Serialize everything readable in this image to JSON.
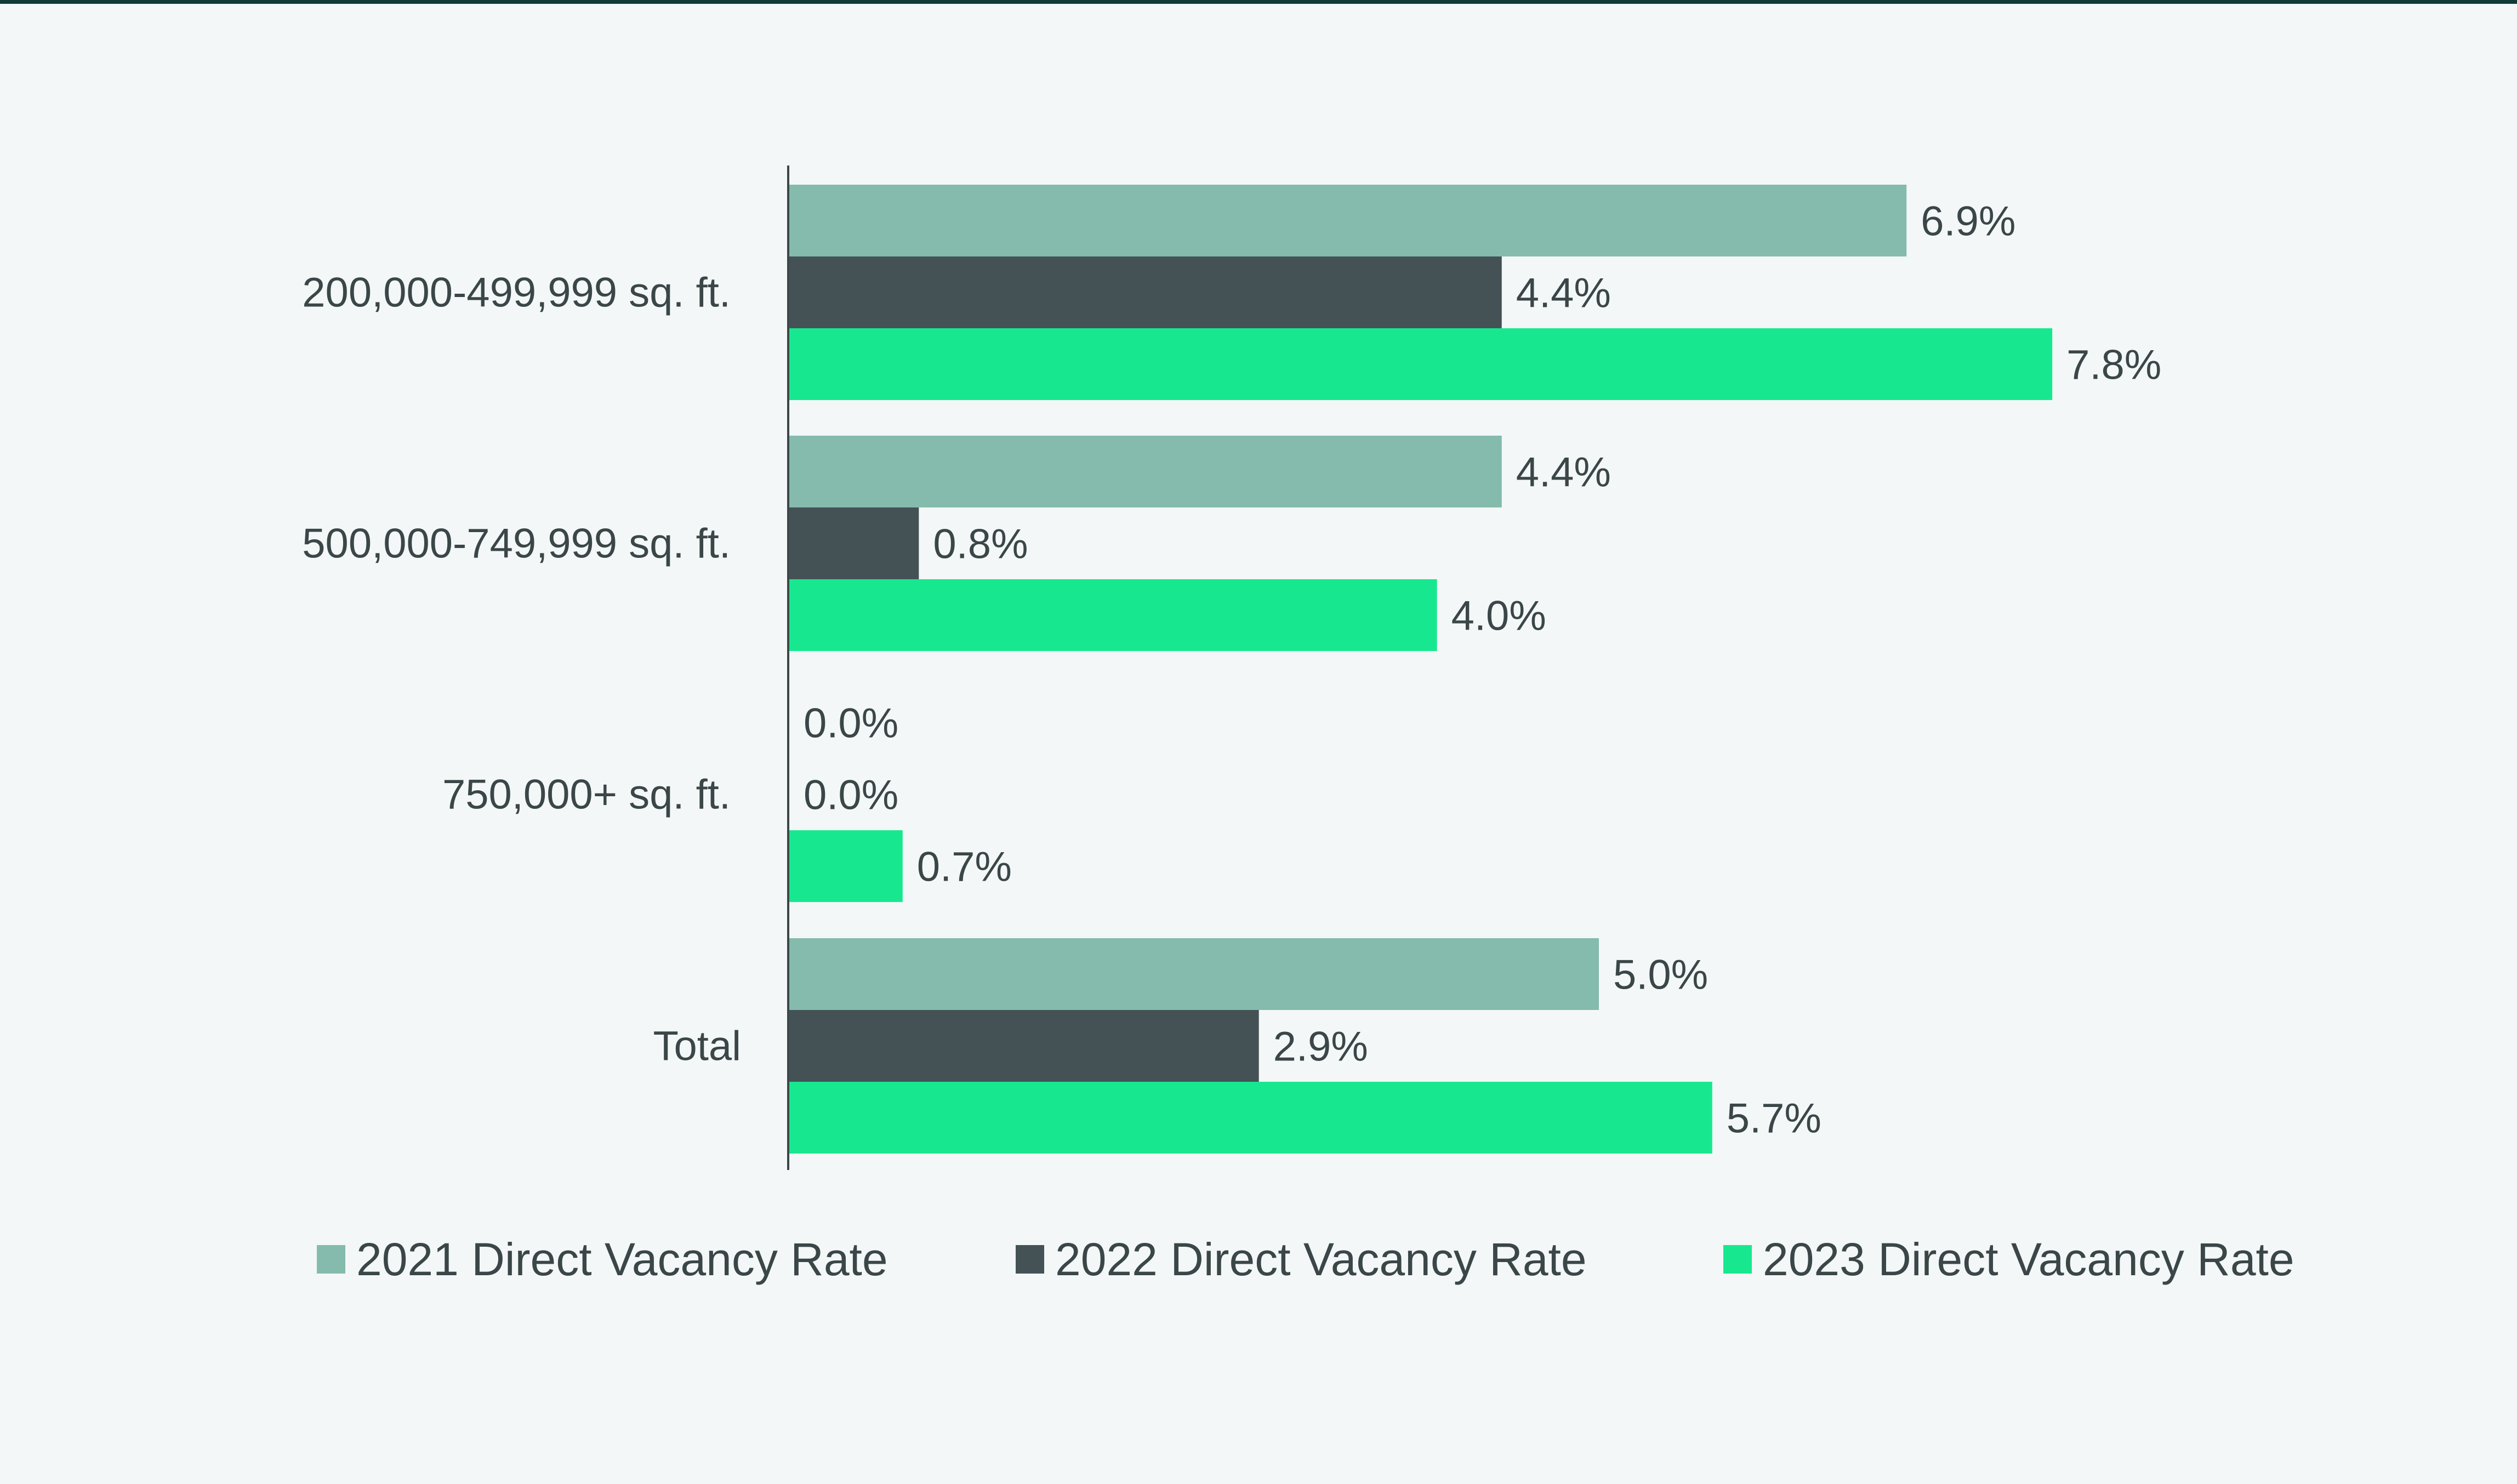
{
  "colors": {
    "background": "#f3f7f7",
    "top_rule": "#0f3a38",
    "axis": "#3b4648",
    "text": "#3b4648"
  },
  "chart_data": {
    "type": "bar",
    "orientation": "horizontal",
    "categories": [
      "200,000-499,999 sq. ft.",
      "500,000-749,999 sq. ft.",
      "750,000+ sq. ft.",
      "Total"
    ],
    "series": [
      {
        "name": "2021 Direct Vacancy Rate",
        "color": "#84bbad",
        "values": [
          6.9,
          4.4,
          0.0,
          5.0
        ]
      },
      {
        "name": "2022 Direct Vacancy Rate",
        "color": "#445256",
        "values": [
          4.4,
          0.8,
          0.0,
          2.9
        ]
      },
      {
        "name": "2023 Direct Vacancy Rate",
        "color": "#17e88f",
        "values": [
          7.8,
          4.0,
          0.7,
          5.7
        ]
      }
    ],
    "value_format": "percent_1dp",
    "xlim": [
      0,
      8.5
    ],
    "grid": false,
    "legend": "bottom"
  }
}
